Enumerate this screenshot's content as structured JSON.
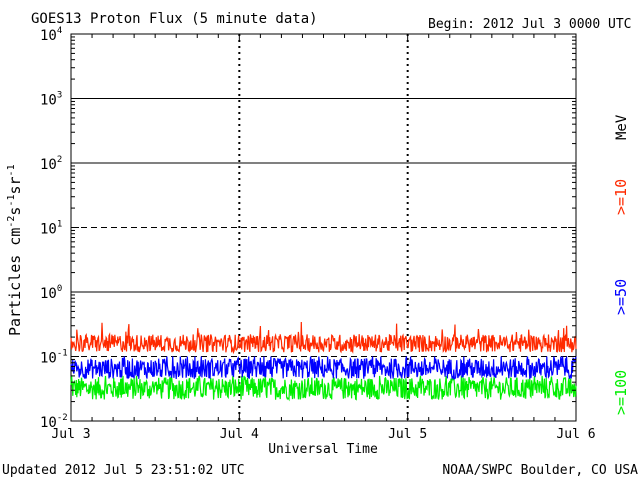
{
  "chart_data": {
    "type": "line",
    "title": "GOES13 Proton Flux (5 minute data)",
    "begin_label": "Begin: 2012 Jul 3 0000 UTC",
    "ylabel_main": "Particles cm",
    "ylabel_sup1": "-2",
    "ylabel_mid1": "s",
    "ylabel_sup2": "-1",
    "ylabel_mid2": "sr",
    "ylabel_sup3": "-1",
    "xlabel": "Universal Time",
    "y_scale": "log",
    "ylim": [
      0.01,
      10000
    ],
    "y_ticks": [
      {
        "base": "10",
        "exp": "-2"
      },
      {
        "base": "10",
        "exp": "-1"
      },
      {
        "base": "10",
        "exp": "0"
      },
      {
        "base": "10",
        "exp": "1"
      },
      {
        "base": "10",
        "exp": "2"
      },
      {
        "base": "10",
        "exp": "3"
      },
      {
        "base": "10",
        "exp": "4"
      }
    ],
    "x_ticks": [
      "Jul 3",
      "Jul 4",
      "Jul 5",
      "Jul 6"
    ],
    "x_range_days": [
      0,
      3
    ],
    "series": [
      {
        "name": ">=10",
        "color": "#ff2a00",
        "base": 0.16,
        "spread": 0.28,
        "spike_max": 0.45
      },
      {
        "name": ">=50",
        "color": "#0000ff",
        "base": 0.065,
        "spread": 0.32,
        "spike_max": 0.1
      },
      {
        "name": ">=100",
        "color": "#00ee00",
        "base": 0.032,
        "spread": 0.35,
        "spike_max": 0.05
      }
    ],
    "legend_unit": "MeV",
    "legend_placement": "right"
  },
  "footer": {
    "updated": "Updated 2012 Jul  5 23:51:02 UTC",
    "source": "NOAA/SWPC Boulder, CO USA"
  }
}
